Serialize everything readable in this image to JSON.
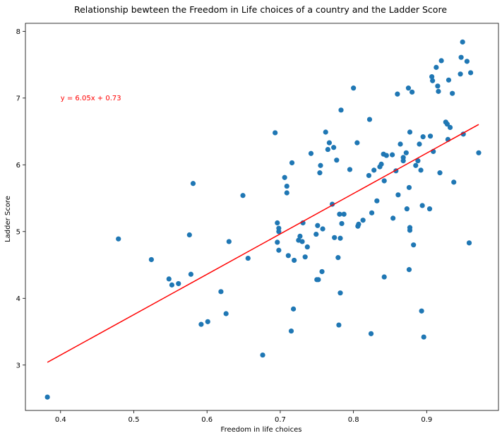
{
  "chart_data": {
    "type": "scatter",
    "title": "Relationship bewteen the Freedom in Life choices of a country and the Ladder Score",
    "xlabel": "Freedom in life choices",
    "ylabel": "Ladder Score",
    "xlim": [
      0.352,
      0.998
    ],
    "ylim": [
      2.32,
      8.12
    ],
    "xticks": [
      0.4,
      0.5,
      0.6,
      0.7,
      0.8,
      0.9
    ],
    "yticks": [
      3,
      4,
      5,
      6,
      7,
      8
    ],
    "grid": false,
    "point_color": "#1f77b4",
    "points": [
      [
        0.382,
        2.52
      ],
      [
        0.479,
        4.89
      ],
      [
        0.524,
        4.58
      ],
      [
        0.548,
        4.29
      ],
      [
        0.552,
        4.2
      ],
      [
        0.561,
        4.22
      ],
      [
        0.576,
        4.95
      ],
      [
        0.578,
        4.36
      ],
      [
        0.581,
        5.72
      ],
      [
        0.592,
        3.61
      ],
      [
        0.601,
        3.65
      ],
      [
        0.619,
        4.1
      ],
      [
        0.626,
        3.77
      ],
      [
        0.63,
        4.85
      ],
      [
        0.649,
        5.54
      ],
      [
        0.656,
        4.6
      ],
      [
        0.676,
        3.15
      ],
      [
        0.693,
        6.48
      ],
      [
        0.696,
        5.13
      ],
      [
        0.696,
        4.84
      ],
      [
        0.698,
        4.72
      ],
      [
        0.698,
        5.05
      ],
      [
        0.698,
        5.0
      ],
      [
        0.706,
        5.81
      ],
      [
        0.709,
        5.68
      ],
      [
        0.709,
        5.58
      ],
      [
        0.711,
        4.64
      ],
      [
        0.715,
        3.51
      ],
      [
        0.716,
        6.03
      ],
      [
        0.718,
        3.84
      ],
      [
        0.719,
        4.57
      ],
      [
        0.725,
        4.87
      ],
      [
        0.727,
        4.93
      ],
      [
        0.73,
        4.85
      ],
      [
        0.731,
        5.13
      ],
      [
        0.734,
        4.62
      ],
      [
        0.737,
        4.77
      ],
      [
        0.742,
        6.17
      ],
      [
        0.749,
        4.96
      ],
      [
        0.75,
        4.28
      ],
      [
        0.752,
        4.28
      ],
      [
        0.751,
        5.09
      ],
      [
        0.754,
        5.88
      ],
      [
        0.755,
        5.99
      ],
      [
        0.757,
        4.4
      ],
      [
        0.758,
        5.04
      ],
      [
        0.762,
        6.49
      ],
      [
        0.765,
        6.23
      ],
      [
        0.767,
        6.33
      ],
      [
        0.771,
        5.41
      ],
      [
        0.773,
        6.26
      ],
      [
        0.774,
        4.91
      ],
      [
        0.777,
        6.07
      ],
      [
        0.779,
        4.61
      ],
      [
        0.78,
        3.6
      ],
      [
        0.781,
        5.26
      ],
      [
        0.782,
        4.08
      ],
      [
        0.782,
        4.9
      ],
      [
        0.783,
        6.82
      ],
      [
        0.784,
        5.12
      ],
      [
        0.787,
        5.26
      ],
      [
        0.795,
        5.93
      ],
      [
        0.8,
        7.15
      ],
      [
        0.805,
        6.33
      ],
      [
        0.806,
        5.08
      ],
      [
        0.807,
        5.11
      ],
      [
        0.813,
        5.17
      ],
      [
        0.821,
        5.84
      ],
      [
        0.822,
        6.68
      ],
      [
        0.824,
        3.47
      ],
      [
        0.825,
        5.28
      ],
      [
        0.828,
        5.92
      ],
      [
        0.832,
        5.46
      ],
      [
        0.836,
        5.97
      ],
      [
        0.838,
        6.01
      ],
      [
        0.841,
        6.16
      ],
      [
        0.842,
        4.32
      ],
      [
        0.842,
        5.76
      ],
      [
        0.845,
        6.14
      ],
      [
        0.853,
        6.15
      ],
      [
        0.854,
        5.2
      ],
      [
        0.858,
        5.91
      ],
      [
        0.86,
        7.06
      ],
      [
        0.861,
        5.55
      ],
      [
        0.864,
        6.31
      ],
      [
        0.868,
        6.06
      ],
      [
        0.868,
        6.11
      ],
      [
        0.872,
        6.18
      ],
      [
        0.873,
        5.34
      ],
      [
        0.875,
        7.15
      ],
      [
        0.876,
        5.66
      ],
      [
        0.876,
        4.43
      ],
      [
        0.877,
        6.49
      ],
      [
        0.877,
        5.06
      ],
      [
        0.877,
        5.02
      ],
      [
        0.88,
        7.09
      ],
      [
        0.882,
        4.8
      ],
      [
        0.885,
        5.99
      ],
      [
        0.888,
        6.06
      ],
      [
        0.89,
        6.31
      ],
      [
        0.892,
        5.92
      ],
      [
        0.893,
        3.81
      ],
      [
        0.894,
        5.39
      ],
      [
        0.895,
        6.42
      ],
      [
        0.896,
        3.42
      ],
      [
        0.904,
        5.34
      ],
      [
        0.905,
        6.43
      ],
      [
        0.907,
        7.32
      ],
      [
        0.908,
        7.26
      ],
      [
        0.909,
        6.2
      ],
      [
        0.913,
        7.46
      ],
      [
        0.915,
        7.18
      ],
      [
        0.916,
        7.1
      ],
      [
        0.918,
        5.88
      ],
      [
        0.92,
        7.56
      ],
      [
        0.926,
        6.64
      ],
      [
        0.928,
        6.61
      ],
      [
        0.929,
        6.38
      ],
      [
        0.93,
        7.27
      ],
      [
        0.932,
        6.56
      ],
      [
        0.935,
        7.07
      ],
      [
        0.937,
        5.74
      ],
      [
        0.946,
        7.36
      ],
      [
        0.947,
        7.61
      ],
      [
        0.949,
        7.84
      ],
      [
        0.95,
        6.46
      ],
      [
        0.955,
        7.55
      ],
      [
        0.958,
        4.83
      ],
      [
        0.96,
        7.38
      ],
      [
        0.971,
        6.18
      ]
    ],
    "regression": {
      "x_range": [
        0.382,
        0.971
      ],
      "slope": 6.05,
      "intercept": 0.73,
      "color": "#ff0000",
      "label": "y = 6.05x + 0.73",
      "label_anchor": [
        0.4,
        7.0
      ]
    }
  }
}
